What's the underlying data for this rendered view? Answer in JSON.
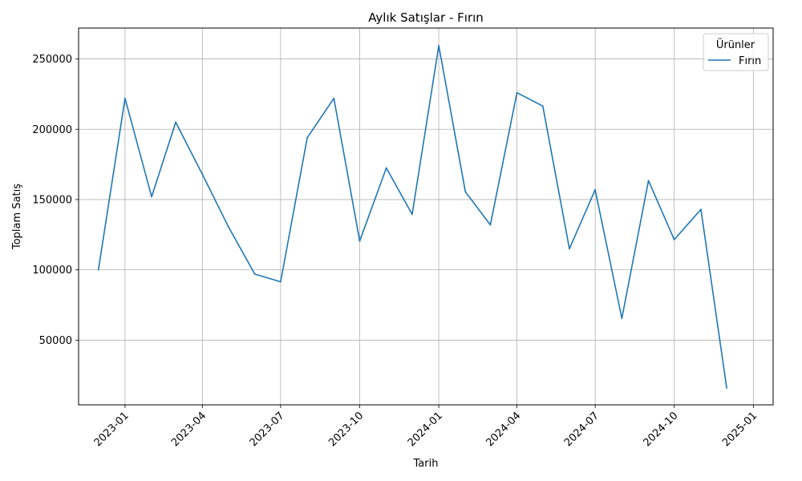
{
  "chart_data": {
    "type": "line",
    "title": "Aylık Satışlar - Fırın",
    "xlabel": "Tarih",
    "ylabel": "Toplam Satış",
    "x": [
      "2022-12-01",
      "2023-01-01",
      "2023-02-01",
      "2023-03-01",
      "2023-04-01",
      "2023-05-01",
      "2023-06-01",
      "2023-07-01",
      "2023-08-01",
      "2023-09-01",
      "2023-10-01",
      "2023-11-01",
      "2023-12-01",
      "2024-01-01",
      "2024-02-01",
      "2024-03-01",
      "2024-04-01",
      "2024-05-01",
      "2024-06-01",
      "2024-07-01",
      "2024-08-01",
      "2024-09-01",
      "2024-10-01",
      "2024-11-01",
      "2024-12-01"
    ],
    "series": [
      {
        "name": "Fırın",
        "color": "#1f77b4",
        "values": [
          100000,
          222000,
          152000,
          205000,
          168000,
          131000,
          97000,
          91500,
          194000,
          222000,
          120500,
          172500,
          139500,
          259500,
          155500,
          132000,
          226000,
          216500,
          115000,
          157000,
          65500,
          163500,
          121500,
          143000,
          16000
        ]
      }
    ],
    "x_ticks": [
      "2023-01",
      "2023-04",
      "2023-07",
      "2023-10",
      "2024-01",
      "2024-04",
      "2024-07",
      "2024-10",
      "2025-01"
    ],
    "x_tick_dates": [
      "2023-01-01",
      "2023-04-01",
      "2023-07-01",
      "2023-10-01",
      "2024-01-01",
      "2024-04-01",
      "2024-07-01",
      "2024-10-01",
      "2025-01-01"
    ],
    "y_ticks": [
      50000,
      100000,
      150000,
      200000,
      250000
    ],
    "xlim": [
      "2022-11-08",
      "2025-01-24"
    ],
    "ylim": [
      4000,
      272000
    ],
    "grid": true,
    "legend": {
      "title": "Ürünler",
      "position": "top-right"
    }
  }
}
